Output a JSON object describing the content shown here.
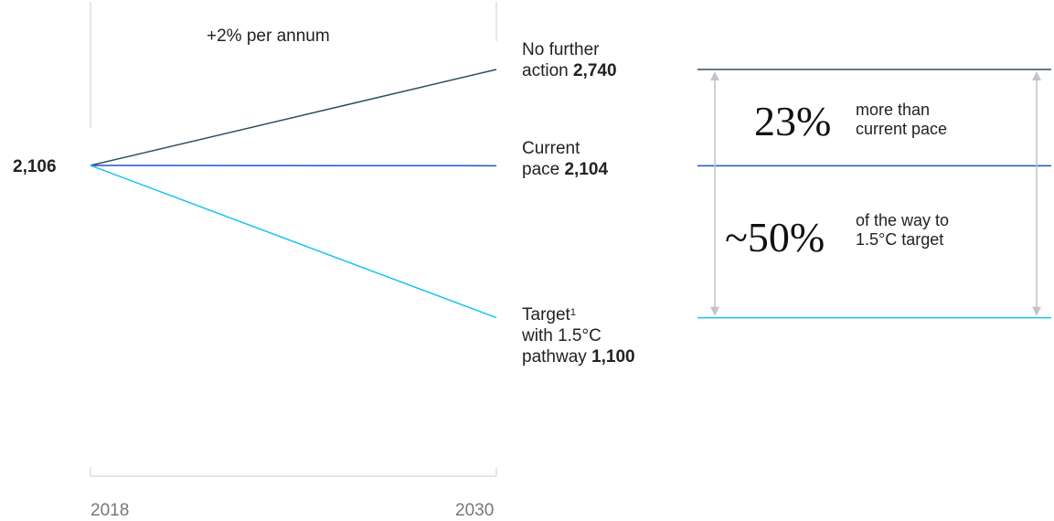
{
  "chart_data": {
    "type": "line",
    "x": [
      2018,
      2030
    ],
    "annotation_rate": "+2% per annum",
    "start_value_label": "2,106",
    "series": [
      {
        "name": "No further action",
        "values": [
          2106,
          2740
        ],
        "value_label": "2,740",
        "color": "#2e4f5e"
      },
      {
        "name": "Current pace",
        "values": [
          2106,
          2104
        ],
        "value_label": "2,104",
        "color": "#2251c8"
      },
      {
        "name": "Target with 1.5°C pathway",
        "values": [
          2106,
          1100
        ],
        "value_label": "1,100",
        "color": "#19c3f0"
      }
    ],
    "xticks": [
      "2018",
      "2030"
    ],
    "ylim": [
      0,
      3000
    ]
  },
  "labels": {
    "rate": "+2% per annum",
    "start": "2,106",
    "nfa_line1": "No further",
    "nfa_line2": "action",
    "nfa_value": "2,740",
    "cp_line1": "Current",
    "cp_line2": "pace",
    "cp_value": "2,104",
    "t_line1": "Target",
    "t_sup": "1",
    "t_line2": "with 1.5°C",
    "t_line3": "pathway",
    "t_value": "1,100",
    "x_start": "2018",
    "x_end": "2030"
  },
  "callouts": {
    "gap1_big": "23%",
    "gap1_line1": "more than",
    "gap1_line2": "current pace",
    "gap2_big": "~50%",
    "gap2_line1": "of the way to",
    "gap2_line2": "1.5°C target"
  },
  "colors": {
    "axis": "#cccccc",
    "arrow": "#c4c4c4"
  }
}
